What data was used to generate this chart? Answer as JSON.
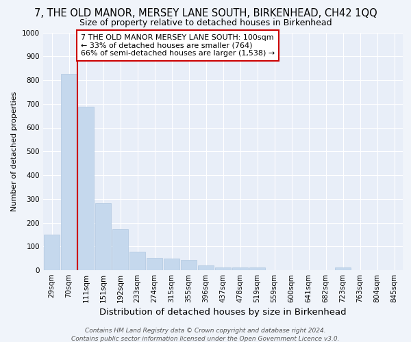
{
  "title": "7, THE OLD MANOR, MERSEY LANE SOUTH, BIRKENHEAD, CH42 1QQ",
  "subtitle": "Size of property relative to detached houses in Birkenhead",
  "xlabel": "Distribution of detached houses by size in Birkenhead",
  "ylabel": "Number of detached properties",
  "categories": [
    "29sqm",
    "70sqm",
    "111sqm",
    "151sqm",
    "192sqm",
    "233sqm",
    "274sqm",
    "315sqm",
    "355sqm",
    "396sqm",
    "437sqm",
    "478sqm",
    "519sqm",
    "559sqm",
    "600sqm",
    "641sqm",
    "682sqm",
    "723sqm",
    "763sqm",
    "804sqm",
    "845sqm"
  ],
  "values": [
    150,
    825,
    688,
    283,
    172,
    78,
    52,
    50,
    42,
    20,
    12,
    12,
    12,
    0,
    0,
    0,
    0,
    12,
    0,
    0,
    0
  ],
  "bar_color": "#c5d8ed",
  "bar_edge_color": "#b0c8e0",
  "red_line_x": 1.5,
  "red_line_color": "#cc0000",
  "annotation_text": "7 THE OLD MANOR MERSEY LANE SOUTH: 100sqm\n← 33% of detached houses are smaller (764)\n66% of semi-detached houses are larger (1,538) →",
  "annotation_box_color": "#ffffff",
  "annotation_box_edge": "#cc0000",
  "ylim": [
    0,
    1000
  ],
  "yticks": [
    0,
    100,
    200,
    300,
    400,
    500,
    600,
    700,
    800,
    900,
    1000
  ],
  "background_color": "#f0f4fa",
  "plot_bg_color": "#e8eef8",
  "grid_color": "#ffffff",
  "footer_line1": "Contains HM Land Registry data © Crown copyright and database right 2024.",
  "footer_line2": "Contains public sector information licensed under the Open Government Licence v3.0.",
  "title_fontsize": 10.5,
  "subtitle_fontsize": 9,
  "xlabel_fontsize": 9.5,
  "ylabel_fontsize": 8,
  "tick_fontsize": 7.5,
  "annotation_fontsize": 8,
  "footer_fontsize": 6.5
}
